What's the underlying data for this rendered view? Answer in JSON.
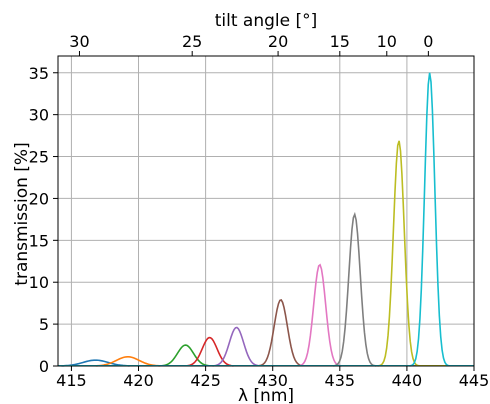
{
  "chart_data": {
    "type": "line",
    "xlabel": "λ [nm]",
    "ylabel": "transmission [%]",
    "top_xlabel": "tilt angle [°]",
    "xlim": [
      414,
      445
    ],
    "ylim": [
      0,
      37
    ],
    "x_ticks": [
      415,
      420,
      425,
      430,
      435,
      440,
      445
    ],
    "y_ticks": [
      0,
      5,
      10,
      15,
      20,
      25,
      30,
      35
    ],
    "top_axis": {
      "labels": [
        "30",
        "25",
        "20",
        "15",
        "10",
        "0"
      ],
      "positions_nm": [
        415.6,
        424.0,
        430.4,
        435.0,
        438.5,
        441.6
      ]
    },
    "grid": true,
    "series": [
      {
        "peak_nm": 416.8,
        "peak_pct": 0.7,
        "fwhm_nm": 2.2,
        "color": "#1f77b4"
      },
      {
        "peak_nm": 419.2,
        "peak_pct": 1.1,
        "fwhm_nm": 2.0,
        "color": "#ff7f0e"
      },
      {
        "peak_nm": 423.5,
        "peak_pct": 2.5,
        "fwhm_nm": 1.4,
        "color": "#2ca02c"
      },
      {
        "peak_nm": 425.3,
        "peak_pct": 3.4,
        "fwhm_nm": 1.3,
        "color": "#d62728"
      },
      {
        "peak_nm": 427.3,
        "peak_pct": 4.6,
        "fwhm_nm": 1.25,
        "color": "#9467bd"
      },
      {
        "peak_nm": 430.6,
        "peak_pct": 7.9,
        "fwhm_nm": 1.15,
        "color": "#8c564b"
      },
      {
        "peak_nm": 433.5,
        "peak_pct": 12.1,
        "fwhm_nm": 1.05,
        "color": "#e377c2"
      },
      {
        "peak_nm": 436.1,
        "peak_pct": 18.1,
        "fwhm_nm": 1.0,
        "color": "#7f7f7f"
      },
      {
        "peak_nm": 439.4,
        "peak_pct": 26.9,
        "fwhm_nm": 0.95,
        "color": "#bcbd22"
      },
      {
        "peak_nm": 441.7,
        "peak_pct": 35.0,
        "fwhm_nm": 0.9,
        "color": "#17becf"
      }
    ]
  }
}
